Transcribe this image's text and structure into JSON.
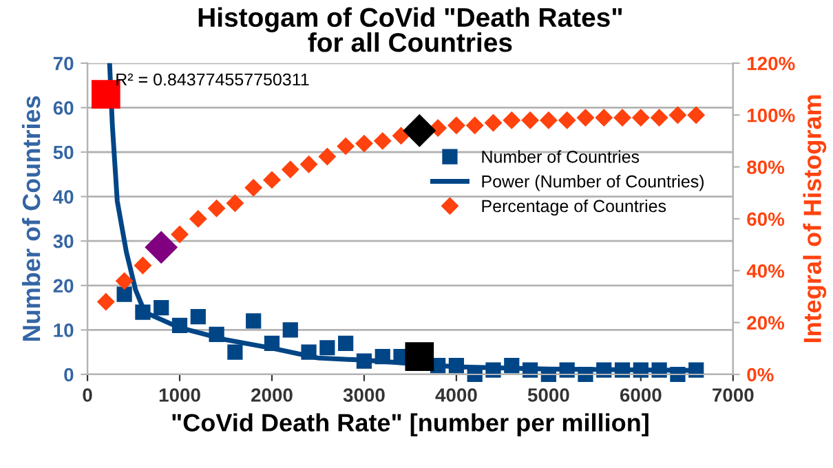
{
  "chart_data": {
    "type": "scatter",
    "title": "Histogam of CoVid \"Death Rates\"\nfor all Countries",
    "xlabel": "\"CoVid Death Rate\" [number per million]",
    "ylabel": "Number of Countries",
    "y2label": "Integral of Histogram",
    "annotations": [
      {
        "text": "R² = 0.843774557750311",
        "x": 300,
        "y": 66
      }
    ],
    "series": [
      {
        "name": "Number of Countries",
        "marker": "square",
        "color": "#004586",
        "x": [
          400,
          600,
          800,
          1000,
          1200,
          1400,
          1600,
          1800,
          2000,
          2200,
          2400,
          2600,
          2800,
          3000,
          3200,
          3400,
          3800,
          4000,
          4200,
          4400,
          4600,
          4800,
          5000,
          5200,
          5400,
          5600,
          5800,
          6000,
          6200,
          6400,
          6600
        ],
        "values": [
          18,
          14,
          15,
          11,
          13,
          9,
          5,
          12,
          7,
          10,
          5,
          6,
          7,
          3,
          4,
          4,
          2,
          2,
          0,
          1,
          2,
          1,
          0,
          1,
          0,
          1,
          1,
          1,
          1,
          0,
          1
        ]
      },
      {
        "name": "Power (Number of Countries)",
        "type": "line",
        "marker": "none",
        "line_style": "solid",
        "color": "#004586",
        "x": [
          240,
          270,
          323,
          422,
          522,
          621,
          1000,
          1500,
          2000,
          2500,
          3000,
          4000,
          5000,
          6000,
          6600
        ],
        "values": [
          70,
          56,
          39,
          27.5,
          19,
          14,
          10.5,
          7.8,
          5.9,
          3.7,
          3.2,
          1.7,
          1.2,
          1,
          0.9
        ]
      },
      {
        "name": "Percentage of Countries",
        "marker": "diamond",
        "axis": "y2",
        "color": "#ff420e",
        "x": [
          200,
          400,
          600,
          1000,
          1200,
          1400,
          1600,
          1800,
          2000,
          2200,
          2400,
          2600,
          2800,
          3000,
          3200,
          3400,
          3800,
          4000,
          4200,
          4400,
          4600,
          4800,
          5000,
          5200,
          5400,
          5600,
          5800,
          6000,
          6200,
          6400,
          6600
        ],
        "values": [
          28,
          36,
          42,
          54,
          60,
          64,
          66,
          72,
          75,
          79,
          81,
          84,
          88,
          89,
          90,
          92,
          95,
          96,
          96,
          97,
          98,
          98,
          98,
          98,
          99,
          99,
          99,
          99,
          99,
          100,
          100
        ]
      },
      {
        "marker": "square",
        "color": "#ff0000",
        "x": [
          200
        ],
        "values": [
          63
        ]
      },
      {
        "marker": "square",
        "color": "#000000",
        "x": [
          3600
        ],
        "values": [
          4
        ]
      },
      {
        "marker": "diamond",
        "axis": "y2",
        "color": "#800080",
        "x": [
          800
        ],
        "values": [
          49
        ]
      },
      {
        "marker": "diamond",
        "axis": "y2",
        "color": "#000000",
        "x": [
          3600
        ],
        "values": [
          94
        ]
      }
    ],
    "xlim": [
      0,
      7000
    ],
    "xticks": [
      0,
      1000,
      2000,
      3000,
      4000,
      5000,
      6000,
      7000
    ],
    "ylim": [
      0,
      70
    ],
    "yticks": [
      0,
      10,
      20,
      30,
      40,
      50,
      60,
      70
    ],
    "y2lim": [
      0,
      120
    ],
    "y2ticks": [
      {
        "value": 0,
        "label": "0%"
      },
      {
        "value": 20,
        "label": "20%"
      },
      {
        "value": 40,
        "label": "40%"
      },
      {
        "value": 60,
        "label": "60%"
      },
      {
        "value": 80,
        "label": "80%"
      },
      {
        "value": 100,
        "label": "100%"
      },
      {
        "value": 120,
        "label": "120%"
      }
    ],
    "grid": "y",
    "legend": "top right"
  }
}
